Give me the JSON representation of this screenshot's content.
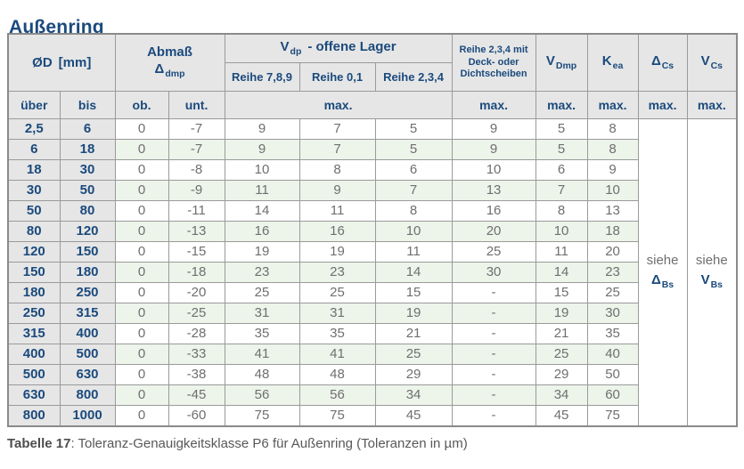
{
  "page_title": "Außenring",
  "colors": {
    "accent_blue": "#1b4a7d",
    "header_bg": "#e6e6e6",
    "row_green": "#edf4ea",
    "data_text": "#6f6f70",
    "border": "#9a9a9a"
  },
  "table": {
    "headers": {
      "diameter": {
        "symbol": "ØD",
        "unit": "[mm]"
      },
      "abmass": {
        "line1": "Abmaß",
        "symbol": "Δ",
        "sub": "dmp"
      },
      "vdp_group": {
        "symbol": "V",
        "sub": "dp",
        "rest": "-  offene Lager"
      },
      "vdp_cols": {
        "c1": "Reihe 7,8,9",
        "c2": "Reihe 0,1",
        "c3": "Reihe 2,3,4"
      },
      "sealed": "Reihe 2,3,4 mit Deck- oder Dichtscheiben",
      "vdmp": {
        "symbol": "V",
        "sub": "Dmp"
      },
      "kea": {
        "symbol": "K",
        "sub": "ea"
      },
      "dcs": {
        "symbol": "Δ",
        "sub": "Cs"
      },
      "vcs": {
        "symbol": "V",
        "sub": "Cs"
      },
      "ueber": "über",
      "bis": "bis",
      "ob": "ob.",
      "unt": "unt.",
      "max": "max."
    },
    "rows": [
      {
        "ueber": "2,5",
        "bis": "6",
        "ob": "0",
        "unt": "-7",
        "r789": "9",
        "r01": "7",
        "r234": "5",
        "sealed": "9",
        "vdmp": "5",
        "kea": "8"
      },
      {
        "ueber": "6",
        "bis": "18",
        "ob": "0",
        "unt": "-7",
        "r789": "9",
        "r01": "7",
        "r234": "5",
        "sealed": "9",
        "vdmp": "5",
        "kea": "8"
      },
      {
        "ueber": "18",
        "bis": "30",
        "ob": "0",
        "unt": "-8",
        "r789": "10",
        "r01": "8",
        "r234": "6",
        "sealed": "10",
        "vdmp": "6",
        "kea": "9"
      },
      {
        "ueber": "30",
        "bis": "50",
        "ob": "0",
        "unt": "-9",
        "r789": "11",
        "r01": "9",
        "r234": "7",
        "sealed": "13",
        "vdmp": "7",
        "kea": "10"
      },
      {
        "ueber": "50",
        "bis": "80",
        "ob": "0",
        "unt": "-11",
        "r789": "14",
        "r01": "11",
        "r234": "8",
        "sealed": "16",
        "vdmp": "8",
        "kea": "13"
      },
      {
        "ueber": "80",
        "bis": "120",
        "ob": "0",
        "unt": "-13",
        "r789": "16",
        "r01": "16",
        "r234": "10",
        "sealed": "20",
        "vdmp": "10",
        "kea": "18"
      },
      {
        "ueber": "120",
        "bis": "150",
        "ob": "0",
        "unt": "-15",
        "r789": "19",
        "r01": "19",
        "r234": "11",
        "sealed": "25",
        "vdmp": "11",
        "kea": "20"
      },
      {
        "ueber": "150",
        "bis": "180",
        "ob": "0",
        "unt": "-18",
        "r789": "23",
        "r01": "23",
        "r234": "14",
        "sealed": "30",
        "vdmp": "14",
        "kea": "23"
      },
      {
        "ueber": "180",
        "bis": "250",
        "ob": "0",
        "unt": "-20",
        "r789": "25",
        "r01": "25",
        "r234": "15",
        "sealed": "-",
        "vdmp": "15",
        "kea": "25"
      },
      {
        "ueber": "250",
        "bis": "315",
        "ob": "0",
        "unt": "-25",
        "r789": "31",
        "r01": "31",
        "r234": "19",
        "sealed": "-",
        "vdmp": "19",
        "kea": "30"
      },
      {
        "ueber": "315",
        "bis": "400",
        "ob": "0",
        "unt": "-28",
        "r789": "35",
        "r01": "35",
        "r234": "21",
        "sealed": "-",
        "vdmp": "21",
        "kea": "35"
      },
      {
        "ueber": "400",
        "bis": "500",
        "ob": "0",
        "unt": "-33",
        "r789": "41",
        "r01": "41",
        "r234": "25",
        "sealed": "-",
        "vdmp": "25",
        "kea": "40"
      },
      {
        "ueber": "500",
        "bis": "630",
        "ob": "0",
        "unt": "-38",
        "r789": "48",
        "r01": "48",
        "r234": "29",
        "sealed": "-",
        "vdmp": "29",
        "kea": "50"
      },
      {
        "ueber": "630",
        "bis": "800",
        "ob": "0",
        "unt": "-45",
        "r789": "56",
        "r01": "56",
        "r234": "34",
        "sealed": "-",
        "vdmp": "34",
        "kea": "60"
      },
      {
        "ueber": "800",
        "bis": "1000",
        "ob": "0",
        "unt": "-60",
        "r789": "75",
        "r01": "75",
        "r234": "45",
        "sealed": "-",
        "vdmp": "45",
        "kea": "75"
      }
    ],
    "siehe_refs": [
      {
        "label": "siehe",
        "symbol": "Δ",
        "sub": "Bs"
      },
      {
        "label": "siehe",
        "symbol": "V",
        "sub": "Bs"
      }
    ]
  },
  "caption": {
    "label": "Tabelle 17",
    "rest": ": Toleranz-Genauigkeitsklasse P6 für Außenring (Toleranzen in µm)"
  }
}
